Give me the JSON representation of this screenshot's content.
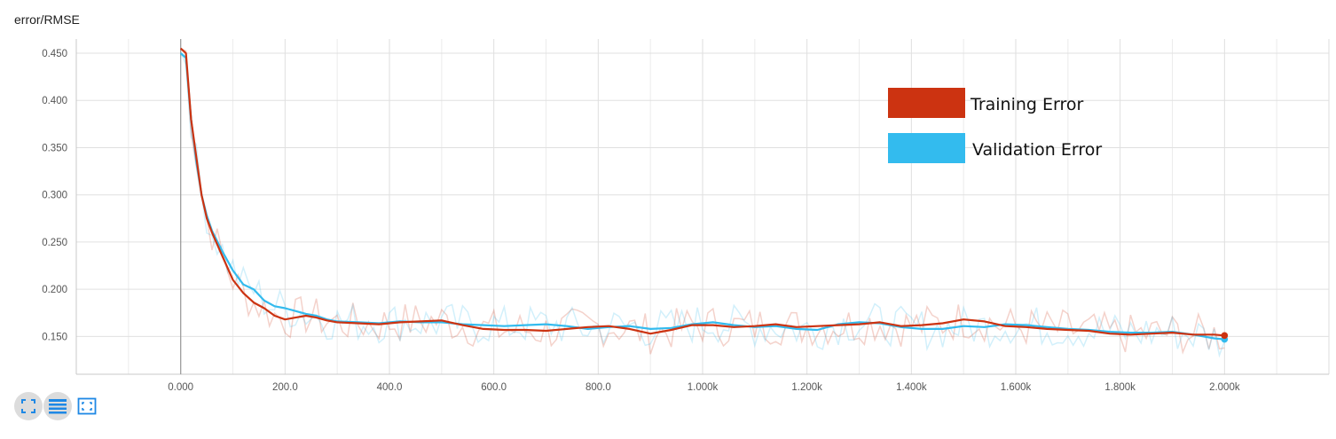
{
  "chart_title": "error/RMSE",
  "colors": {
    "training": "#cc3311",
    "validation": "#33bbee",
    "grid": "#e0e0e0",
    "axis": "#9e9e9e",
    "icon": "#1e88e5"
  },
  "toolbar": {
    "buttons": [
      {
        "icon": "fit-domain-icon"
      },
      {
        "icon": "data-series-icon"
      },
      {
        "icon": "selection-zoom-icon"
      }
    ]
  },
  "chart_data": {
    "type": "line",
    "title": "error/RMSE",
    "xlabel": "",
    "ylabel": "",
    "xlim": [
      -200,
      2200
    ],
    "ylim": [
      0.11,
      0.465
    ],
    "x_ticks": [
      0,
      200,
      400,
      600,
      800,
      1000,
      1200,
      1400,
      1600,
      1800,
      2000
    ],
    "x_tick_labels": [
      "0.000",
      "200.0",
      "400.0",
      "600.0",
      "800.0",
      "1.000k",
      "1.200k",
      "1.400k",
      "1.600k",
      "1.800k",
      "2.000k"
    ],
    "y_ticks": [
      0.15,
      0.2,
      0.25,
      0.3,
      0.35,
      0.4,
      0.45
    ],
    "y_tick_labels": [
      "0.150",
      "0.200",
      "0.250",
      "0.300",
      "0.350",
      "0.400",
      "0.450"
    ],
    "grid": true,
    "legend": {
      "placement": "top-right",
      "entries": [
        {
          "label": "Training Error",
          "color": "#cc3311"
        },
        {
          "label": "Validation Error",
          "color": "#33bbee"
        }
      ]
    },
    "series": [
      {
        "name": "Training Error",
        "color": "#cc3311",
        "x": [
          0,
          10,
          20,
          30,
          40,
          50,
          60,
          80,
          100,
          120,
          140,
          160,
          180,
          200,
          220,
          240,
          260,
          280,
          300,
          340,
          380,
          420,
          460,
          500,
          540,
          580,
          620,
          660,
          700,
          740,
          780,
          820,
          860,
          900,
          940,
          980,
          1020,
          1060,
          1100,
          1140,
          1180,
          1220,
          1260,
          1300,
          1340,
          1380,
          1420,
          1460,
          1500,
          1540,
          1580,
          1620,
          1660,
          1700,
          1740,
          1780,
          1820,
          1860,
          1900,
          1940,
          1980,
          2000
        ],
        "y": [
          0.455,
          0.45,
          0.38,
          0.34,
          0.3,
          0.275,
          0.26,
          0.235,
          0.21,
          0.196,
          0.186,
          0.18,
          0.172,
          0.168,
          0.17,
          0.172,
          0.17,
          0.167,
          0.165,
          0.164,
          0.163,
          0.165,
          0.166,
          0.167,
          0.162,
          0.158,
          0.157,
          0.157,
          0.156,
          0.158,
          0.16,
          0.161,
          0.158,
          0.153,
          0.157,
          0.162,
          0.162,
          0.16,
          0.161,
          0.163,
          0.16,
          0.161,
          0.162,
          0.163,
          0.165,
          0.161,
          0.162,
          0.164,
          0.168,
          0.166,
          0.161,
          0.16,
          0.158,
          0.157,
          0.156,
          0.153,
          0.152,
          0.153,
          0.154,
          0.152,
          0.152,
          0.151
        ]
      },
      {
        "name": "Validation Error",
        "color": "#33bbee",
        "x": [
          0,
          10,
          20,
          30,
          40,
          50,
          60,
          80,
          100,
          120,
          140,
          160,
          180,
          200,
          220,
          240,
          260,
          280,
          300,
          340,
          380,
          420,
          460,
          500,
          540,
          580,
          620,
          660,
          700,
          740,
          780,
          820,
          860,
          900,
          940,
          980,
          1020,
          1060,
          1100,
          1140,
          1180,
          1220,
          1260,
          1300,
          1340,
          1380,
          1420,
          1460,
          1500,
          1540,
          1580,
          1620,
          1660,
          1700,
          1740,
          1780,
          1820,
          1860,
          1900,
          1940,
          1980,
          2000
        ],
        "y": [
          0.45,
          0.445,
          0.38,
          0.335,
          0.3,
          0.278,
          0.262,
          0.24,
          0.22,
          0.205,
          0.2,
          0.188,
          0.182,
          0.18,
          0.177,
          0.174,
          0.172,
          0.168,
          0.166,
          0.165,
          0.164,
          0.166,
          0.165,
          0.165,
          0.163,
          0.162,
          0.161,
          0.162,
          0.163,
          0.161,
          0.158,
          0.16,
          0.161,
          0.158,
          0.159,
          0.163,
          0.165,
          0.162,
          0.16,
          0.161,
          0.158,
          0.157,
          0.163,
          0.165,
          0.164,
          0.16,
          0.158,
          0.158,
          0.161,
          0.16,
          0.163,
          0.162,
          0.16,
          0.158,
          0.157,
          0.155,
          0.154,
          0.154,
          0.155,
          0.152,
          0.148,
          0.147
        ]
      }
    ]
  }
}
